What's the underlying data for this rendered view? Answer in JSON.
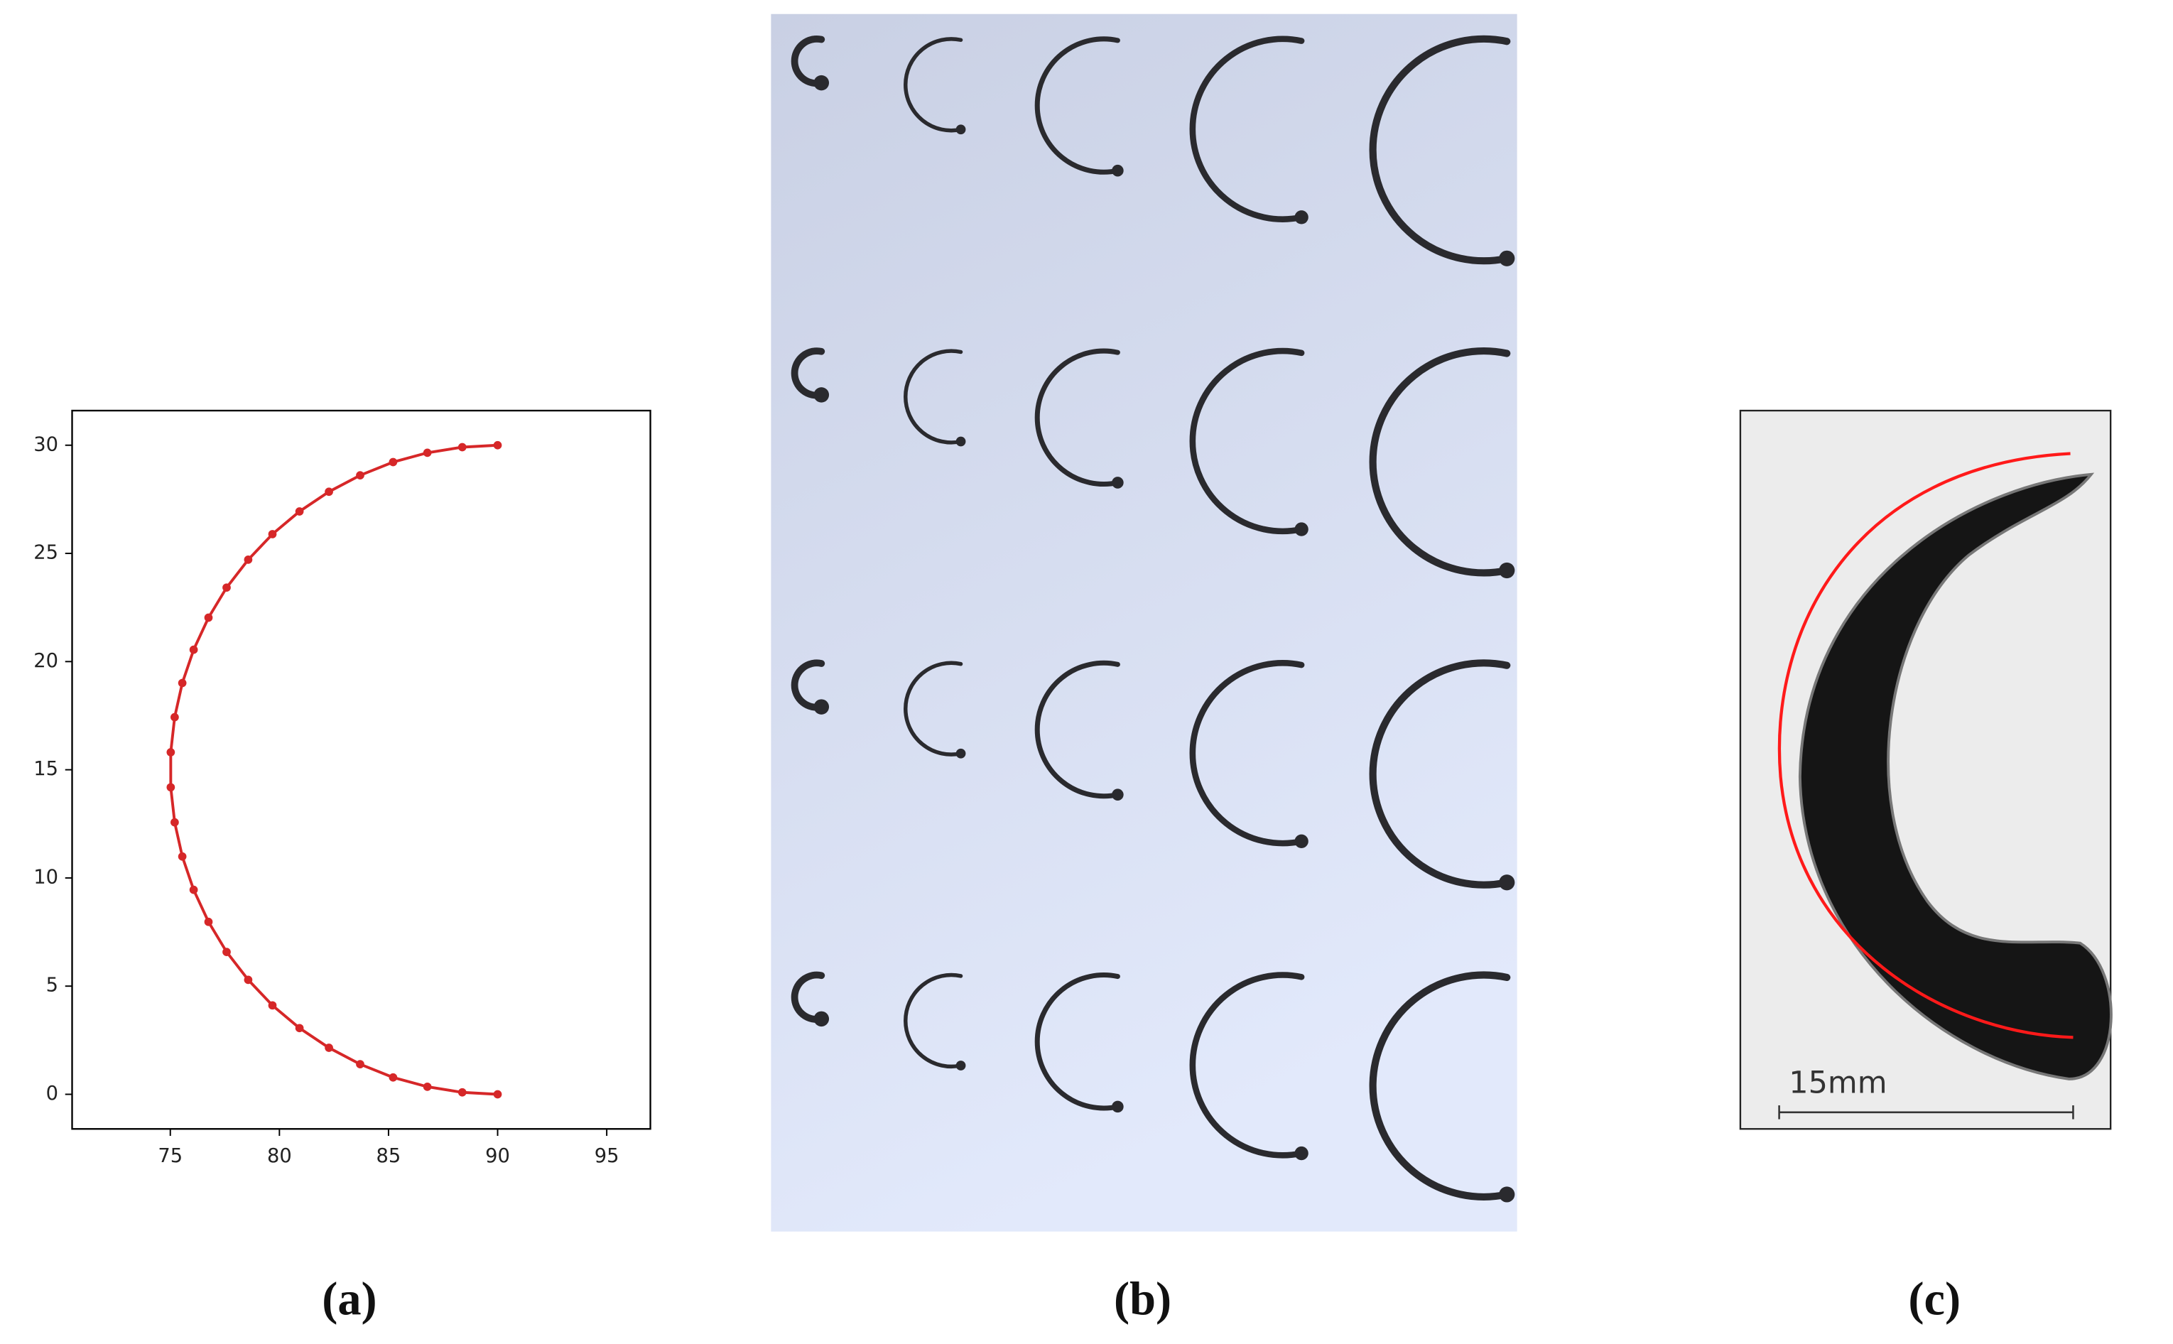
{
  "chart_data": {
    "type": "line",
    "color": "#d62728",
    "x": [
      90,
      88.38,
      86.78,
      85.21,
      83.7,
      82.27,
      80.92,
      79.68,
      78.57,
      77.58,
      76.75,
      76.07,
      75.55,
      75.2,
      75.02,
      75.02,
      75.2,
      75.55,
      76.07,
      76.75,
      77.58,
      78.57,
      79.68,
      80.92,
      82.27,
      83.7,
      85.21,
      86.78,
      88.38,
      90
    ],
    "values": [
      30,
      29.91,
      29.65,
      29.22,
      28.61,
      27.85,
      26.94,
      25.89,
      24.71,
      23.42,
      22.03,
      20.55,
      19.01,
      17.43,
      15.81,
      14.19,
      12.57,
      10.99,
      9.45,
      7.97,
      6.58,
      5.29,
      4.11,
      3.06,
      2.15,
      1.39,
      0.78,
      0.35,
      0.09,
      0
    ],
    "xlim": [
      70.5,
      97
    ],
    "ylim": [
      -1.6,
      31.6
    ],
    "xticks": [
      75,
      80,
      85,
      90,
      95
    ],
    "yticks": [
      0,
      5,
      10,
      15,
      20,
      25,
      30
    ]
  },
  "panel_labels": [
    "(a)",
    "(b)",
    "(c)"
  ],
  "scale_bar": "15mm"
}
